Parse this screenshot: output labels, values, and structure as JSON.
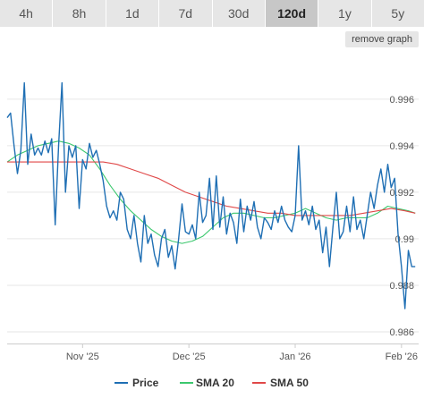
{
  "range_tabs": [
    {
      "label": "4h",
      "active": false
    },
    {
      "label": "8h",
      "active": false
    },
    {
      "label": "1d",
      "active": false
    },
    {
      "label": "7d",
      "active": false
    },
    {
      "label": "30d",
      "active": false
    },
    {
      "label": "120d",
      "active": true
    },
    {
      "label": "1y",
      "active": false
    },
    {
      "label": "5y",
      "active": false
    }
  ],
  "remove_graph_label": "remove graph",
  "chart_data": {
    "type": "line",
    "ylim": [
      0.9855,
      0.9978
    ],
    "xlim": [
      0,
      120
    ],
    "y_ticks": [
      {
        "value": 0.986,
        "label": "0.986"
      },
      {
        "value": 0.988,
        "label": "0.988"
      },
      {
        "value": 0.99,
        "label": "0.99"
      },
      {
        "value": 0.992,
        "label": "0.992"
      },
      {
        "value": 0.994,
        "label": "0.994"
      },
      {
        "value": 0.996,
        "label": "0.996"
      }
    ],
    "x_ticks": [
      {
        "x": 22,
        "label": "Nov '25"
      },
      {
        "x": 53,
        "label": "Dec '25"
      },
      {
        "x": 84,
        "label": "Jan '26"
      },
      {
        "x": 115,
        "label": "Feb '26"
      }
    ],
    "grid": true,
    "legend_position": "bottom",
    "series": [
      {
        "name": "Price",
        "color": "#1f6fb4",
        "x": [
          0,
          1,
          2,
          3,
          4,
          5,
          6,
          7,
          8,
          9,
          10,
          11,
          12,
          13,
          14,
          15,
          16,
          17,
          18,
          19,
          20,
          21,
          22,
          23,
          24,
          25,
          26,
          27,
          28,
          29,
          30,
          31,
          32,
          33,
          34,
          35,
          36,
          37,
          38,
          39,
          40,
          41,
          42,
          43,
          44,
          45,
          46,
          47,
          48,
          49,
          50,
          51,
          52,
          53,
          54,
          55,
          56,
          57,
          58,
          59,
          60,
          61,
          62,
          63,
          64,
          65,
          66,
          67,
          68,
          69,
          70,
          71,
          72,
          73,
          74,
          75,
          76,
          77,
          78,
          79,
          80,
          81,
          82,
          83,
          84,
          85,
          86,
          87,
          88,
          89,
          90,
          91,
          92,
          93,
          94,
          95,
          96,
          97,
          98,
          99,
          100,
          101,
          102,
          103,
          104,
          105,
          106,
          107,
          108,
          109,
          110,
          111,
          112,
          113,
          114,
          115,
          116,
          117,
          118,
          119
        ],
        "values": [
          0.9952,
          0.9954,
          0.994,
          0.9928,
          0.9938,
          0.9967,
          0.9932,
          0.9945,
          0.9936,
          0.9939,
          0.9936,
          0.9942,
          0.9937,
          0.9943,
          0.9906,
          0.994,
          0.9967,
          0.992,
          0.994,
          0.9935,
          0.994,
          0.9913,
          0.9934,
          0.993,
          0.9941,
          0.9935,
          0.9938,
          0.9932,
          0.9925,
          0.9914,
          0.9909,
          0.9912,
          0.9908,
          0.992,
          0.9917,
          0.9904,
          0.99,
          0.991,
          0.9898,
          0.989,
          0.991,
          0.9898,
          0.9902,
          0.9893,
          0.9888,
          0.99,
          0.9904,
          0.9892,
          0.9897,
          0.9887,
          0.99,
          0.9915,
          0.9903,
          0.9902,
          0.9906,
          0.99,
          0.992,
          0.9907,
          0.991,
          0.9926,
          0.9904,
          0.9927,
          0.9905,
          0.9918,
          0.9902,
          0.9911,
          0.9907,
          0.9898,
          0.9917,
          0.9903,
          0.9914,
          0.9908,
          0.9916,
          0.9905,
          0.99,
          0.9909,
          0.9907,
          0.9904,
          0.9912,
          0.9907,
          0.9914,
          0.9908,
          0.9905,
          0.9903,
          0.991,
          0.994,
          0.9908,
          0.9912,
          0.9906,
          0.9914,
          0.9904,
          0.9908,
          0.9894,
          0.9905,
          0.9888,
          0.9905,
          0.992,
          0.99,
          0.9903,
          0.9914,
          0.9903,
          0.9918,
          0.9904,
          0.9908,
          0.99,
          0.991,
          0.992,
          0.9913,
          0.9923,
          0.993,
          0.992,
          0.9932,
          0.9922,
          0.9926,
          0.9902,
          0.9888,
          0.987,
          0.9895,
          0.9888,
          0.9888
        ]
      },
      {
        "name": "SMA 20",
        "color": "#3cc86e",
        "x": [
          0,
          3,
          6,
          9,
          12,
          15,
          18,
          21,
          24,
          27,
          30,
          33,
          36,
          39,
          42,
          45,
          48,
          51,
          54,
          57,
          60,
          63,
          66,
          69,
          72,
          75,
          78,
          81,
          84,
          87,
          90,
          93,
          96,
          99,
          102,
          105,
          108,
          111,
          114,
          117,
          119
        ],
        "values": [
          0.9933,
          0.9936,
          0.9938,
          0.994,
          0.9941,
          0.9942,
          0.9941,
          0.9939,
          0.9936,
          0.993,
          0.9923,
          0.9917,
          0.9912,
          0.9908,
          0.9904,
          0.9901,
          0.9899,
          0.9898,
          0.9899,
          0.9901,
          0.9905,
          0.9909,
          0.9911,
          0.9911,
          0.991,
          0.9909,
          0.9909,
          0.991,
          0.9911,
          0.9913,
          0.9911,
          0.9909,
          0.9908,
          0.9909,
          0.9909,
          0.9909,
          0.9911,
          0.9914,
          0.9913,
          0.9912,
          0.9911
        ]
      },
      {
        "name": "SMA 50",
        "color": "#e04848",
        "x": [
          0,
          4,
          8,
          12,
          16,
          20,
          24,
          28,
          32,
          36,
          40,
          44,
          48,
          52,
          56,
          60,
          64,
          68,
          72,
          76,
          80,
          84,
          88,
          92,
          96,
          100,
          104,
          108,
          112,
          116,
          119
        ],
        "values": [
          0.9933,
          0.9933,
          0.9933,
          0.9933,
          0.9933,
          0.9933,
          0.9933,
          0.9933,
          0.9932,
          0.993,
          0.9928,
          0.9926,
          0.9923,
          0.992,
          0.9918,
          0.9916,
          0.9914,
          0.9913,
          0.9912,
          0.9911,
          0.9911,
          0.991,
          0.991,
          0.991,
          0.991,
          0.991,
          0.9911,
          0.9912,
          0.9913,
          0.9912,
          0.9911
        ]
      }
    ]
  }
}
